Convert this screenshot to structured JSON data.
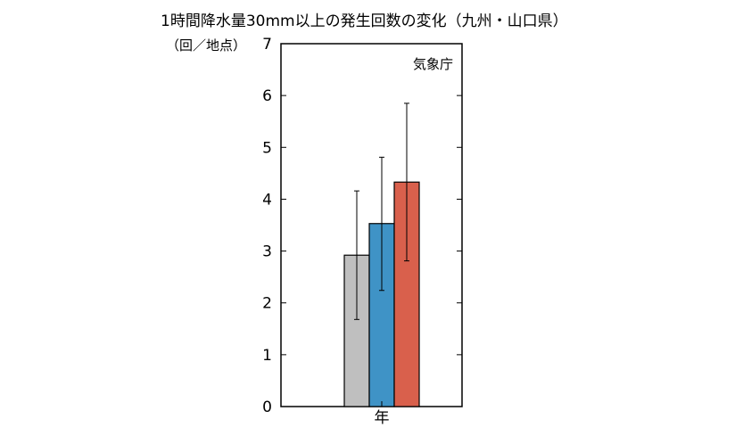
{
  "title": "1時間降水量30mm以上の発生回数の変化（九州・山口県）",
  "unit_label": "（回／地点）",
  "source_label": "気象庁",
  "chart_data": {
    "type": "bar",
    "title": "1時間降水量30mm以上の発生回数の変化（九州・山口県）",
    "ylabel": "（回／地点）",
    "xlabel": "",
    "ylim": [
      0,
      7
    ],
    "yticks": [
      "0",
      "1",
      "2",
      "3",
      "4",
      "5",
      "6",
      "7"
    ],
    "categories": [
      "年"
    ],
    "grid": false,
    "series": [
      {
        "values": [
          2.92
        ],
        "error_low": [
          1.68
        ],
        "error_high": [
          4.16
        ],
        "color": "#bfbfbf"
      },
      {
        "values": [
          3.53
        ],
        "error_low": [
          2.24
        ],
        "error_high": [
          4.81
        ],
        "color": "#3f93c6"
      },
      {
        "values": [
          4.33
        ],
        "error_low": [
          2.81
        ],
        "error_high": [
          5.85
        ],
        "color": "#d9604c"
      }
    ]
  }
}
